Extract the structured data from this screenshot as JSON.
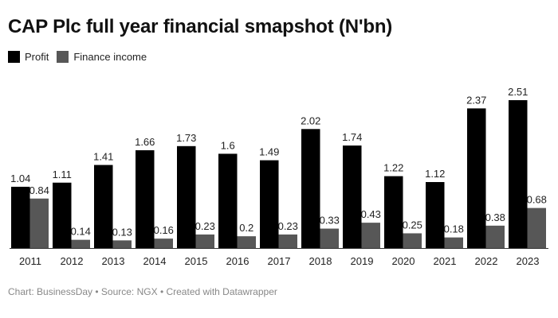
{
  "chart_data": {
    "type": "bar",
    "title": "CAP Plc full year financial smapshot (N'bn)",
    "categories": [
      "2011",
      "2012",
      "2013",
      "2014",
      "2015",
      "2016",
      "2017",
      "2018",
      "2019",
      "2020",
      "2021",
      "2022",
      "2023"
    ],
    "series": [
      {
        "name": "Profit",
        "color": "#000000",
        "values": [
          1.04,
          1.11,
          1.41,
          1.66,
          1.73,
          1.6,
          1.49,
          2.02,
          1.74,
          1.22,
          1.12,
          2.37,
          2.51
        ],
        "labels": [
          "1.04",
          "1.11",
          "1.41",
          "1.66",
          "1.73",
          "1.6",
          "1.49",
          "2.02",
          "1.74",
          "1.22",
          "1.12",
          "2.37",
          "2.51"
        ]
      },
      {
        "name": "Finance income",
        "color": "#575757",
        "values": [
          0.84,
          0.14,
          0.13,
          0.16,
          0.23,
          0.2,
          0.23,
          0.33,
          0.43,
          0.25,
          0.18,
          0.38,
          0.68
        ],
        "labels": [
          "0.84",
          "0.14",
          "0.13",
          "0.16",
          "0.23",
          "0.2",
          "0.23",
          "0.33",
          "0.43",
          "0.25",
          "0.18",
          "0.38",
          "0.68"
        ]
      }
    ],
    "ylim": [
      0,
      2.51
    ],
    "xlabel": "",
    "ylabel": "",
    "grid": false,
    "legend": "top-left"
  },
  "footer": "Chart: BusinessDay • Source: NGX • Created with Datawrapper"
}
